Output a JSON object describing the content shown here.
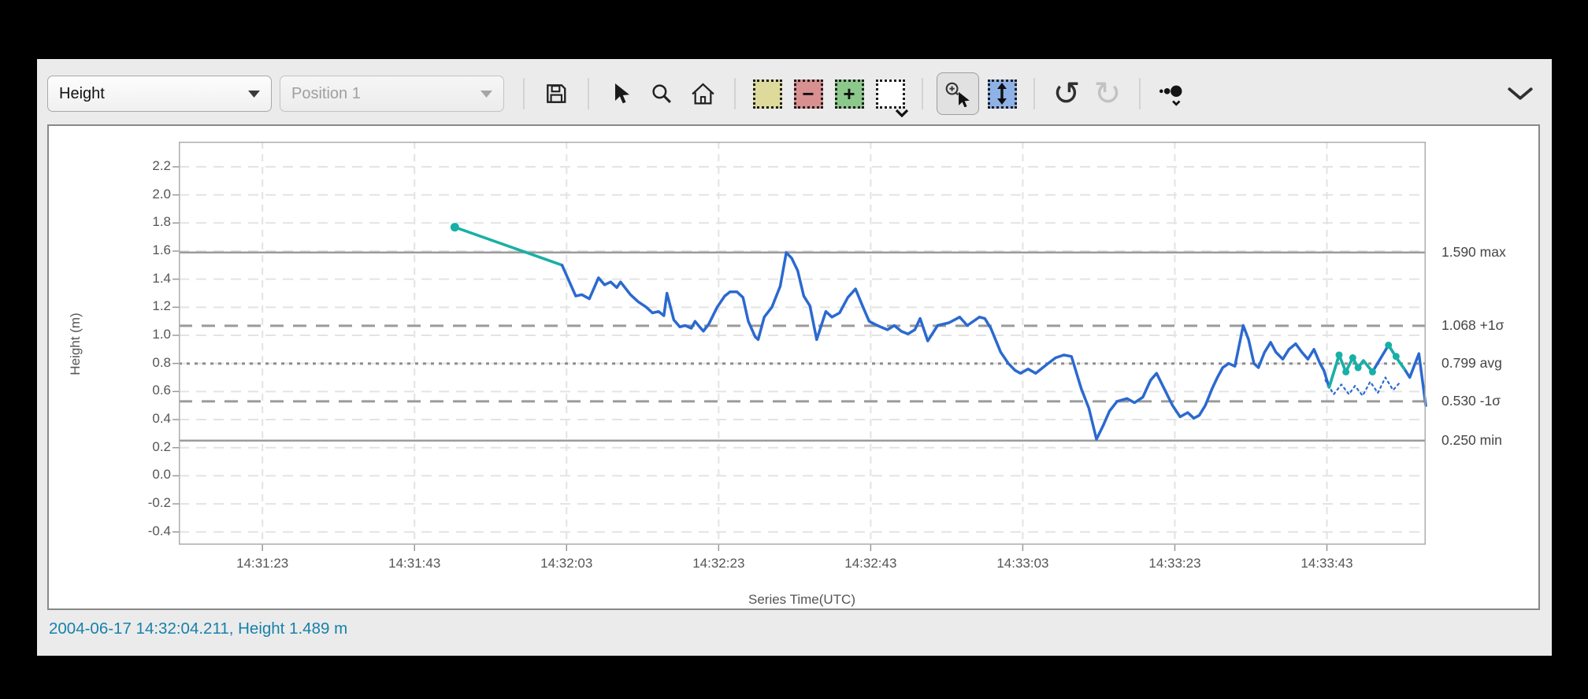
{
  "toolbar": {
    "series_select_value": "Height",
    "position_select_value": "Position 1",
    "region_minus": "−",
    "region_plus": "+",
    "undo_glyph": "↺",
    "redo_glyph": "↻",
    "buttons": [
      {
        "name": "save",
        "icon": "floppy-disk-icon"
      },
      {
        "name": "pointer-tool",
        "icon": "cursor-icon"
      },
      {
        "name": "zoom-tool",
        "icon": "magnifier-icon"
      },
      {
        "name": "home-view",
        "icon": "home-icon"
      },
      {
        "name": "region-highlight",
        "icon": "yellow-region-icon"
      },
      {
        "name": "region-remove",
        "icon": "red-region-minus-icon"
      },
      {
        "name": "region-add",
        "icon": "green-region-plus-icon"
      },
      {
        "name": "region-menu",
        "icon": "region-dropdown-icon"
      },
      {
        "name": "zoom-select",
        "icon": "magnifier-cursor-icon",
        "active": true
      },
      {
        "name": "y-axis-zoom",
        "icon": "vertical-range-icon"
      },
      {
        "name": "undo",
        "icon": "undo-icon"
      },
      {
        "name": "redo",
        "icon": "redo-icon",
        "disabled": true
      },
      {
        "name": "point-density",
        "icon": "dots-menu-icon"
      },
      {
        "name": "collapse-toolbar",
        "icon": "chevron-down-icon"
      }
    ]
  },
  "status_bar": {
    "text": "2004-06-17 14:32:04.211, Height 1.489 m"
  },
  "colors": {
    "accent_blue": "#2b69d0",
    "accent_teal": "#17b0a6",
    "status_text": "#1781aa",
    "window_bg": "#ebebeb",
    "panel_border": "#888888",
    "grid": "#e3e3e3",
    "stat_line": "#9b9b9b"
  },
  "chart_data": {
    "type": "line",
    "title": "",
    "xlabel": "Series Time(UTC)",
    "ylabel": "Height (m)",
    "x_start_time": "14:31:12",
    "x_domain_seconds": [
      0,
      164
    ],
    "y_domain": [
      -0.491,
      2.379
    ],
    "grid": true,
    "x_ticks": [
      {
        "t": 11,
        "label": "14:31:23"
      },
      {
        "t": 31,
        "label": "14:31:43"
      },
      {
        "t": 51,
        "label": "14:32:03"
      },
      {
        "t": 71,
        "label": "14:32:23"
      },
      {
        "t": 91,
        "label": "14:32:43"
      },
      {
        "t": 111,
        "label": "14:33:03"
      },
      {
        "t": 131,
        "label": "14:33:23"
      },
      {
        "t": 151,
        "label": "14:33:43"
      }
    ],
    "y_ticks": [
      2.2,
      2.0,
      1.8,
      1.6,
      1.4,
      1.2,
      1.0,
      0.8,
      0.6,
      0.4,
      0.2,
      0.0,
      -0.2,
      -0.4
    ],
    "stat_lines": [
      {
        "value": 1.59,
        "label": "1.590 max",
        "style": "solid"
      },
      {
        "value": 1.068,
        "label": "1.068 +1σ",
        "style": "dashed"
      },
      {
        "value": 0.799,
        "label": "0.799 avg",
        "style": "dotted"
      },
      {
        "value": 0.53,
        "label": "0.530 -1σ",
        "style": "dashed"
      },
      {
        "value": 0.25,
        "label": "0.250 min",
        "style": "solid"
      }
    ],
    "series": [
      {
        "name": "height-raw-lead",
        "color": "#17b0a6",
        "width": 3.5,
        "start_dot": true,
        "points": [
          [
            36.3,
            1.77
          ],
          [
            50.4,
            1.5
          ]
        ]
      },
      {
        "name": "height-min-dotted",
        "color": "#2b69d0",
        "width": 2.2,
        "dash": "2.5 4.5",
        "points": [
          [
            150.8,
            0.68
          ],
          [
            151.9,
            0.58
          ],
          [
            152.9,
            0.65
          ],
          [
            153.9,
            0.58
          ],
          [
            154.7,
            0.64
          ],
          [
            155.7,
            0.57
          ],
          [
            156.7,
            0.67
          ],
          [
            157.7,
            0.59
          ],
          [
            158.7,
            0.7
          ],
          [
            159.7,
            0.61
          ],
          [
            160.7,
            0.67
          ]
        ]
      },
      {
        "name": "height",
        "color": "#2b69d0",
        "width": 3.5,
        "points": [
          [
            50.4,
            1.5
          ],
          [
            52.2,
            1.28
          ],
          [
            53.0,
            1.29
          ],
          [
            54.0,
            1.26
          ],
          [
            55.2,
            1.41
          ],
          [
            56.0,
            1.36
          ],
          [
            56.8,
            1.38
          ],
          [
            57.6,
            1.34
          ],
          [
            58.1,
            1.38
          ],
          [
            59.4,
            1.29
          ],
          [
            60.4,
            1.24
          ],
          [
            61.5,
            1.2
          ],
          [
            62.3,
            1.16
          ],
          [
            63.1,
            1.17
          ],
          [
            63.8,
            1.14
          ],
          [
            64.2,
            1.3
          ],
          [
            65.1,
            1.11
          ],
          [
            65.9,
            1.06
          ],
          [
            66.6,
            1.07
          ],
          [
            67.4,
            1.05
          ],
          [
            67.9,
            1.1
          ],
          [
            68.5,
            1.06
          ],
          [
            69.0,
            1.03
          ],
          [
            69.7,
            1.08
          ],
          [
            70.8,
            1.2
          ],
          [
            71.8,
            1.28
          ],
          [
            72.5,
            1.31
          ],
          [
            73.4,
            1.31
          ],
          [
            74.2,
            1.27
          ],
          [
            74.9,
            1.1
          ],
          [
            75.8,
            0.99
          ],
          [
            76.2,
            0.97
          ],
          [
            77.0,
            1.13
          ],
          [
            78.0,
            1.2
          ],
          [
            79.1,
            1.35
          ],
          [
            79.9,
            1.59
          ],
          [
            80.6,
            1.55
          ],
          [
            81.4,
            1.46
          ],
          [
            82.2,
            1.28
          ],
          [
            83.0,
            1.21
          ],
          [
            83.9,
            0.97
          ],
          [
            85.1,
            1.17
          ],
          [
            85.9,
            1.13
          ],
          [
            86.9,
            1.16
          ],
          [
            88.0,
            1.27
          ],
          [
            89.0,
            1.33
          ],
          [
            90.0,
            1.2
          ],
          [
            90.8,
            1.1
          ],
          [
            91.5,
            1.08
          ],
          [
            92.3,
            1.06
          ],
          [
            93.2,
            1.04
          ],
          [
            94.1,
            1.07
          ],
          [
            95.0,
            1.03
          ],
          [
            95.9,
            1.01
          ],
          [
            96.8,
            1.04
          ],
          [
            97.5,
            1.12
          ],
          [
            98.5,
            0.96
          ],
          [
            99.8,
            1.07
          ],
          [
            101.3,
            1.09
          ],
          [
            102.7,
            1.13
          ],
          [
            103.7,
            1.07
          ],
          [
            105.3,
            1.13
          ],
          [
            106.0,
            1.12
          ],
          [
            106.8,
            1.05
          ],
          [
            108.1,
            0.88
          ],
          [
            109.1,
            0.8
          ],
          [
            110.0,
            0.75
          ],
          [
            110.7,
            0.73
          ],
          [
            111.7,
            0.76
          ],
          [
            112.7,
            0.73
          ],
          [
            114.1,
            0.79
          ],
          [
            115.3,
            0.84
          ],
          [
            116.4,
            0.86
          ],
          [
            117.4,
            0.85
          ],
          [
            118.7,
            0.62
          ],
          [
            119.7,
            0.48
          ],
          [
            120.7,
            0.26
          ],
          [
            121.6,
            0.36
          ],
          [
            122.4,
            0.46
          ],
          [
            123.4,
            0.53
          ],
          [
            124.7,
            0.55
          ],
          [
            125.7,
            0.52
          ],
          [
            126.8,
            0.56
          ],
          [
            127.8,
            0.68
          ],
          [
            128.6,
            0.73
          ],
          [
            129.6,
            0.62
          ],
          [
            130.7,
            0.5
          ],
          [
            131.7,
            0.42
          ],
          [
            132.7,
            0.45
          ],
          [
            133.5,
            0.41
          ],
          [
            134.2,
            0.43
          ],
          [
            135.0,
            0.5
          ],
          [
            135.9,
            0.62
          ],
          [
            136.6,
            0.7
          ],
          [
            137.3,
            0.77
          ],
          [
            138.1,
            0.8
          ],
          [
            138.9,
            0.78
          ],
          [
            140.0,
            1.07
          ],
          [
            140.7,
            0.97
          ],
          [
            141.4,
            0.8
          ],
          [
            142.0,
            0.77
          ],
          [
            142.8,
            0.88
          ],
          [
            143.6,
            0.95
          ],
          [
            144.3,
            0.88
          ],
          [
            145.2,
            0.83
          ],
          [
            146.0,
            0.9
          ],
          [
            146.9,
            0.94
          ],
          [
            147.7,
            0.88
          ],
          [
            148.5,
            0.83
          ],
          [
            149.3,
            0.9
          ],
          [
            150.1,
            0.8
          ],
          [
            150.6,
            0.75
          ],
          [
            151.3,
            0.63
          ],
          [
            152.6,
            0.86
          ],
          [
            153.5,
            0.74
          ],
          [
            154.4,
            0.84
          ],
          [
            155.1,
            0.77
          ],
          [
            155.8,
            0.82
          ],
          [
            157.0,
            0.74
          ],
          [
            159.1,
            0.93
          ],
          [
            160.4,
            0.82
          ],
          [
            161.2,
            0.76
          ],
          [
            161.9,
            0.7
          ],
          [
            163.1,
            0.87
          ],
          [
            164.0,
            0.5
          ]
        ]
      },
      {
        "name": "height-raw-overlay",
        "color": "#17b0a6",
        "width": 3.5,
        "points": [
          [
            151.3,
            0.63
          ],
          [
            152.6,
            0.86
          ],
          [
            153.5,
            0.74
          ],
          [
            154.4,
            0.84
          ],
          [
            155.1,
            0.77
          ],
          [
            155.8,
            0.82
          ],
          [
            157.0,
            0.74
          ]
        ],
        "dots": [
          [
            152.6,
            0.86
          ],
          [
            153.5,
            0.74
          ],
          [
            154.4,
            0.84
          ],
          [
            155.1,
            0.77
          ],
          [
            157.0,
            0.74
          ],
          [
            159.1,
            0.93
          ],
          [
            160.1,
            0.85
          ]
        ]
      },
      {
        "name": "height-raw-overlay-2",
        "color": "#17b0a6",
        "width": 3.5,
        "points": [
          [
            159.1,
            0.93
          ],
          [
            160.4,
            0.82
          ],
          [
            161.2,
            0.76
          ]
        ]
      }
    ]
  }
}
